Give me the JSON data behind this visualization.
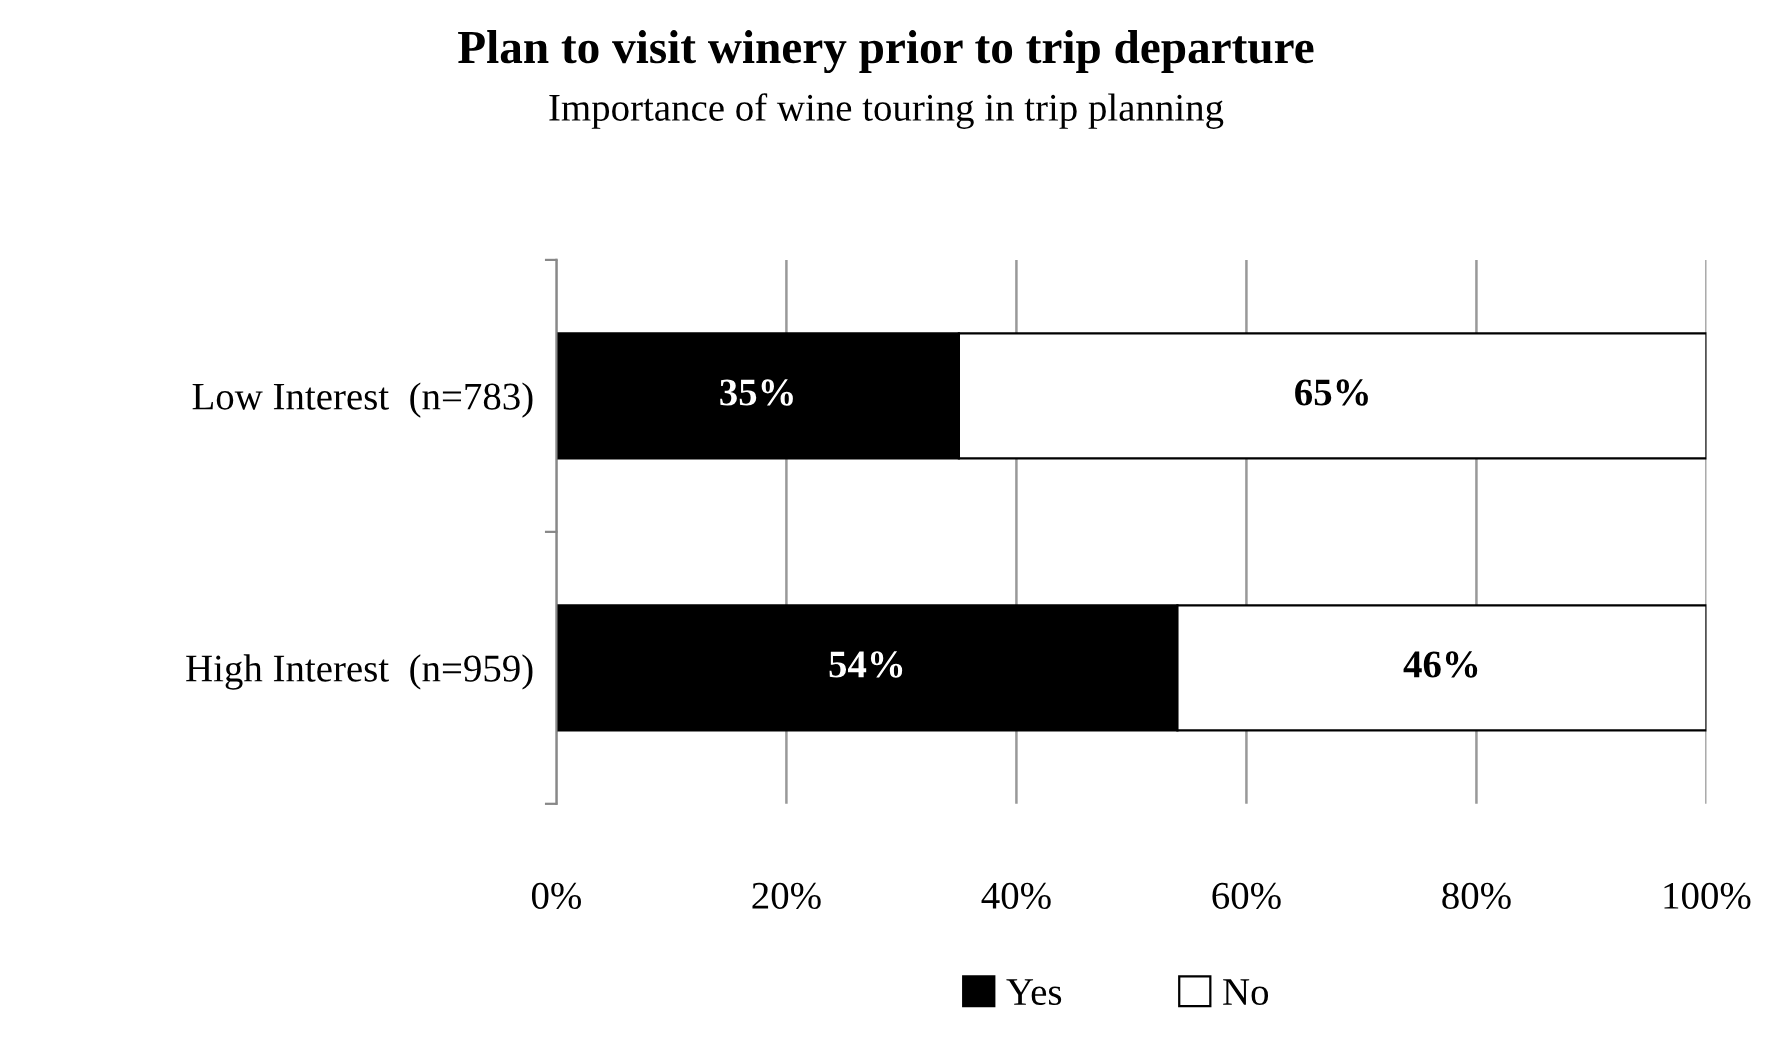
{
  "chart_data": {
    "type": "bar",
    "orientation": "horizontal",
    "stacked": true,
    "title": "Plan to visit winery prior to trip departure",
    "subtitle": "Importance of wine touring in trip planning",
    "categories": [
      "Low Interest  (n=783)",
      "High Interest  (n=959)"
    ],
    "series": [
      {
        "name": "Yes",
        "color": "#000000",
        "values": [
          35,
          54
        ],
        "value_labels": [
          "35%",
          "54%"
        ]
      },
      {
        "name": "No",
        "color": "#ffffff",
        "values": [
          65,
          46
        ],
        "value_labels": [
          "65%",
          "46%"
        ]
      }
    ],
    "xlim": [
      0,
      100
    ],
    "xticks": [
      {
        "value": 0,
        "label": "0%"
      },
      {
        "value": 20,
        "label": "20%"
      },
      {
        "value": 40,
        "label": "40%"
      },
      {
        "value": 60,
        "label": "60%"
      },
      {
        "value": 80,
        "label": "80%"
      },
      {
        "value": 100,
        "label": "100%"
      }
    ],
    "grid": "x",
    "legend": "bottom"
  }
}
